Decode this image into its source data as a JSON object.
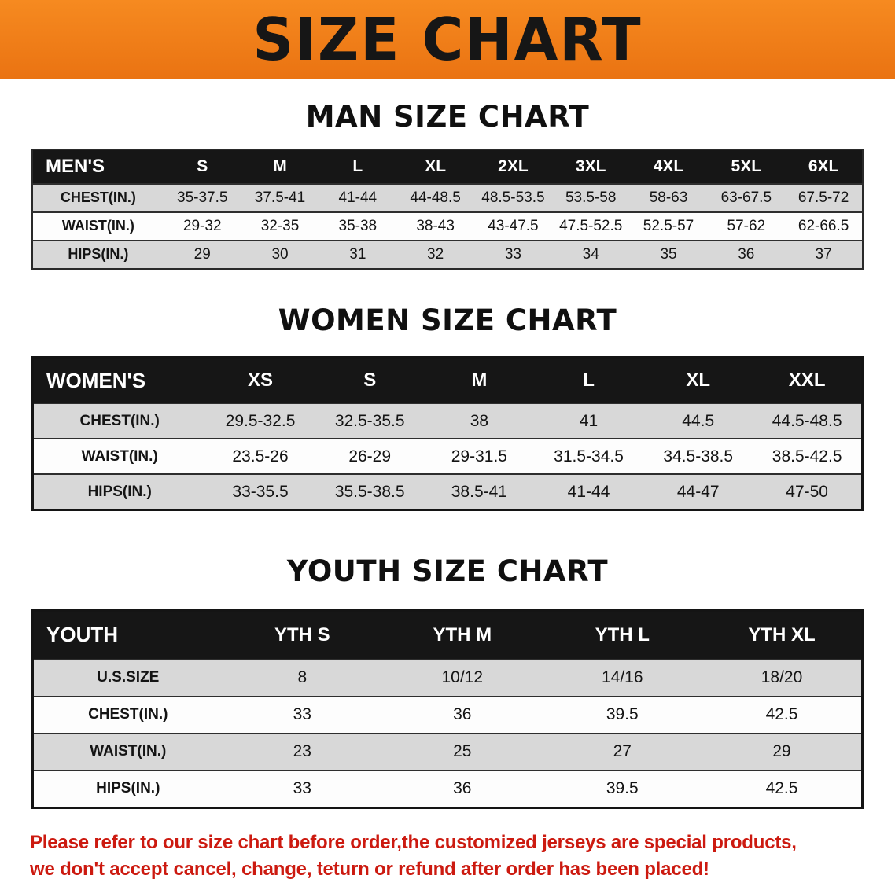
{
  "banner": {
    "title": "SIZE CHART",
    "background_color": "#f0831d",
    "title_color": "#161616"
  },
  "colors": {
    "table_header_bg": "#161616",
    "table_header_text": "#ffffff",
    "row_stripe": "#d8d8d8",
    "footer_text": "#cc1a10"
  },
  "sections": [
    {
      "id": "men",
      "heading": "MAN SIZE CHART",
      "table": {
        "header": [
          "MEN'S",
          "S",
          "M",
          "L",
          "XL",
          "2XL",
          "3XL",
          "4XL",
          "5XL",
          "6XL"
        ],
        "rows": [
          [
            "CHEST(IN.)",
            "35-37.5",
            "37.5-41",
            "41-44",
            "44-48.5",
            "48.5-53.5",
            "53.5-58",
            "58-63",
            "63-67.5",
            "67.5-72"
          ],
          [
            "WAIST(IN.)",
            "29-32",
            "32-35",
            "35-38",
            "38-43",
            "43-47.5",
            "47.5-52.5",
            "52.5-57",
            "57-62",
            "62-66.5"
          ],
          [
            "HIPS(IN.)",
            "29",
            "30",
            "31",
            "32",
            "33",
            "34",
            "35",
            "36",
            "37"
          ]
        ]
      }
    },
    {
      "id": "women",
      "heading": "WOMEN SIZE CHART",
      "table": {
        "header": [
          "WOMEN'S",
          "XS",
          "S",
          "M",
          "L",
          "XL",
          "XXL"
        ],
        "rows": [
          [
            "CHEST(IN.)",
            "29.5-32.5",
            "32.5-35.5",
            "38",
            "41",
            "44.5",
            "44.5-48.5"
          ],
          [
            "WAIST(IN.)",
            "23.5-26",
            "26-29",
            "29-31.5",
            "31.5-34.5",
            "34.5-38.5",
            "38.5-42.5"
          ],
          [
            "HIPS(IN.)",
            "33-35.5",
            "35.5-38.5",
            "38.5-41",
            "41-44",
            "44-47",
            "47-50"
          ]
        ]
      }
    },
    {
      "id": "youth",
      "heading": "YOUTH SIZE CHART",
      "table": {
        "header": [
          "YOUTH",
          "YTH S",
          "YTH M",
          "YTH L",
          "YTH XL"
        ],
        "rows": [
          [
            "U.S.SIZE",
            "8",
            "10/12",
            "14/16",
            "18/20"
          ],
          [
            "CHEST(IN.)",
            "33",
            "36",
            "39.5",
            "42.5"
          ],
          [
            "WAIST(IN.)",
            "23",
            "25",
            "27",
            "29"
          ],
          [
            "HIPS(IN.)",
            "33",
            "36",
            "39.5",
            "42.5"
          ]
        ]
      }
    }
  ],
  "footer": {
    "lines": [
      "Please refer to our size chart before order,the customized jerseys are special products,",
      "we don't accept cancel, change, teturn or refund after order has been placed!"
    ]
  }
}
